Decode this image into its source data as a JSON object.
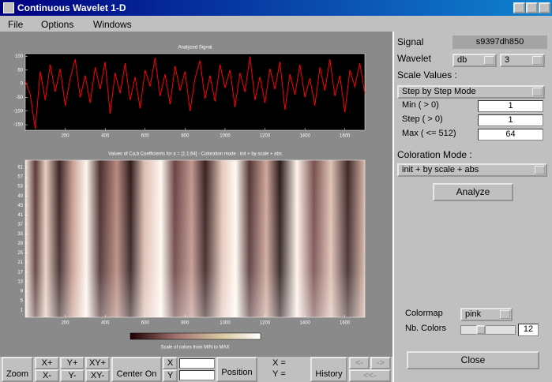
{
  "window": {
    "title": "Continuous Wavelet 1-D"
  },
  "menu": [
    "File",
    "Options",
    "Windows"
  ],
  "chart_data": [
    {
      "type": "line",
      "title": "Analyzed Signal",
      "color": "#ff0000",
      "x": [
        0,
        25,
        50,
        75,
        100,
        125,
        150,
        175,
        200,
        225,
        250,
        275,
        300,
        325,
        350,
        375,
        400,
        425,
        450,
        475,
        500,
        525,
        550,
        575,
        600,
        625,
        650,
        675,
        700,
        725,
        750,
        775,
        800,
        825,
        850,
        875,
        900,
        925,
        950,
        975,
        1000,
        1025,
        1050,
        1075,
        1100,
        1125,
        1150,
        1175,
        1200,
        1225,
        1250,
        1275,
        1300,
        1325,
        1350,
        1375,
        1400,
        1425,
        1450,
        1475,
        1500,
        1525,
        1550,
        1575,
        1600,
        1625,
        1650,
        1675,
        1700
      ],
      "values": [
        10,
        -40,
        -165,
        45,
        -60,
        70,
        -30,
        55,
        -80,
        20,
        90,
        -50,
        30,
        -70,
        60,
        -20,
        80,
        -110,
        40,
        -35,
        75,
        -60,
        25,
        -90,
        50,
        -10,
        95,
        -45,
        35,
        -75,
        65,
        -25,
        45,
        -100,
        20,
        85,
        -55,
        30,
        -65,
        70,
        -15,
        50,
        -85,
        40,
        -30,
        100,
        -60,
        25,
        -70,
        55,
        -20,
        80,
        -95,
        35,
        -40,
        70,
        -50,
        20,
        -80,
        60,
        -25,
        90,
        -45,
        30,
        -105,
        50,
        -10,
        75,
        -35
      ],
      "xlim": [
        0,
        1700
      ],
      "xticks": [
        200,
        400,
        600,
        800,
        1000,
        1200,
        1400,
        1600
      ],
      "ylim": [
        -170,
        110
      ],
      "yticks": [
        100,
        50,
        0,
        -50,
        -100,
        -150
      ]
    },
    {
      "type": "heatmap",
      "title": "Values of Ca,b Coefficients for a = [1:1:64] - Coloration mode : init + by scale + abs",
      "xlim": [
        0,
        1700
      ],
      "xticks": [
        200,
        400,
        600,
        800,
        1000,
        1200,
        1400,
        1600
      ],
      "ylim": [
        -2,
        64
      ],
      "yticks": [
        61,
        57,
        53,
        49,
        45,
        41,
        37,
        33,
        29,
        25,
        21,
        17,
        13,
        9,
        5,
        1
      ],
      "colorbar_label": "Scale of colors from MIN to MAX"
    }
  ],
  "toolbar": {
    "zoom": "Zoom",
    "xplus": "X+",
    "yplus": "Y+",
    "xyplus": "XY+",
    "xminus": "X-",
    "yminus": "Y-",
    "xyminus": "XY-",
    "center": "Center On",
    "cx": "X",
    "cy": "Y",
    "position": "Position",
    "xeq": "X =",
    "yeq": "Y =",
    "history": "History",
    "back": "<-",
    "fwd": "->",
    "first": "<<-"
  },
  "panel": {
    "signal_label": "Signal",
    "signal": "s9397dh850",
    "wavelet_label": "Wavelet",
    "wavelet": "db",
    "order": "3",
    "scale_label": "Scale Values :",
    "scale_mode": "Step by Step Mode",
    "min_label": "Min  ( > 0)",
    "min": "1",
    "step_label": "Step ( > 0)",
    "step": "1",
    "max_label": "Max  ( <= 512)",
    "max": "64",
    "coloration_label": "Coloration Mode :",
    "coloration": "init + by scale + abs",
    "analyze": "Analyze",
    "colormap_label": "Colormap",
    "colormap": "pink",
    "ncolors_label": "Nb. Colors",
    "ncolors": "12",
    "close": "Close"
  }
}
